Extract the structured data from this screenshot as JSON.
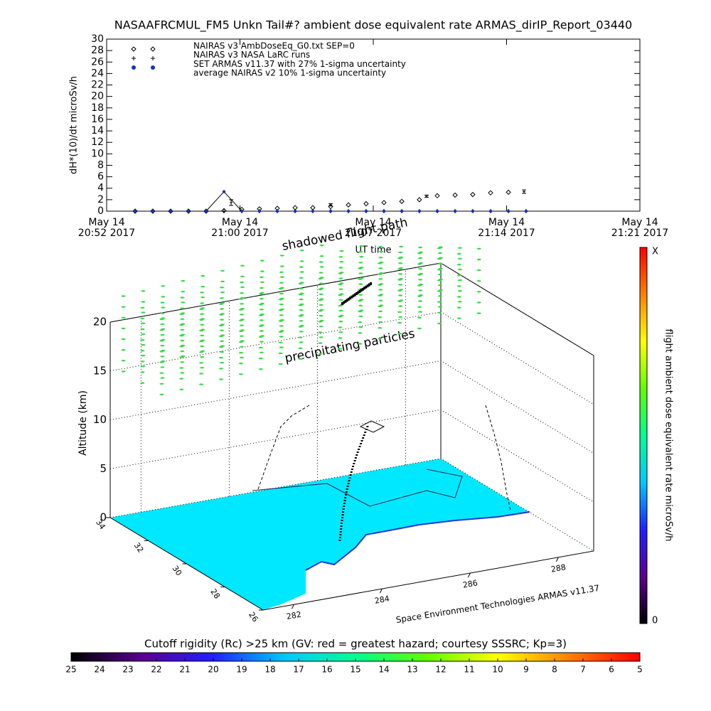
{
  "chart_data": [
    {
      "type": "scatter",
      "title": "NASAAFRCMUL_FM5 Unkn Tail#? ambient dose equivalent rate ARMAS_dirIP_Report_03440",
      "y_label": "dH*(10)/dt microSv/h",
      "x_label": "UT time",
      "xlim": [
        0,
        29
      ],
      "xticks": [
        {
          "value": 0,
          "label": "May 14\n20:52 2017"
        },
        {
          "value": 7.25,
          "label": "May 14\n21:00 2017"
        },
        {
          "value": 14.5,
          "label": "May 14\n21:07 2017"
        },
        {
          "value": 21.75,
          "label": "May 14\n21:14 2017"
        },
        {
          "value": 29,
          "label": "May 14\n21:21 2017"
        }
      ],
      "ylim": [
        0,
        30
      ],
      "yticks": [
        0,
        2,
        4,
        6,
        8,
        10,
        12,
        14,
        16,
        18,
        20,
        22,
        24,
        26,
        28,
        30
      ],
      "x": [
        1.55,
        2.51,
        3.48,
        4.45,
        5.41,
        6.38,
        7.35,
        8.31,
        9.28,
        10.25,
        11.21,
        12.18,
        13.15,
        14.11,
        15.08,
        16.05,
        17.01,
        17.98,
        18.95,
        19.91,
        20.88,
        21.85,
        22.81
      ],
      "series": [
        {
          "name": "NAIRAS v3 AmbDoseEq_G0.txt SEP=0",
          "color": "#000000",
          "marker": "diamond",
          "values": [
            0,
            0,
            0,
            0,
            0,
            0.1,
            0.3,
            0.4,
            0.5,
            0.6,
            0.6,
            0.8,
            1.1,
            1.3,
            1.5,
            1.7,
            2.0,
            2.7,
            2.8,
            2.9,
            3.2,
            3.3,
            null
          ]
        },
        {
          "name": "NAIRAS v3 NASA LaRC runs",
          "color": "#000000",
          "marker": "plus",
          "values": [
            0,
            0,
            0,
            0,
            0,
            0,
            0,
            0,
            0,
            0,
            0,
            0,
            0,
            0,
            0,
            0,
            0,
            0,
            0,
            0,
            0,
            0,
            0
          ]
        },
        {
          "name": "SET ARMAS v11.37 with 27% 1-sigma uncertainty",
          "color": "#1030d0",
          "marker": "dot",
          "values": [
            0,
            0,
            0,
            0,
            0,
            3.4,
            0,
            0,
            0,
            0,
            0,
            0,
            0,
            0,
            0,
            0,
            0,
            0,
            0,
            0,
            0,
            0,
            0
          ]
        },
        {
          "name": "average NAIRAS v2 10% 1-sigma uncertainty",
          "color": "#000000",
          "marker": "errorbar",
          "x": [
            6.77,
            12.18,
            17.4,
            22.7
          ],
          "values": [
            1.5,
            1.1,
            2.6,
            3.4
          ],
          "errors": [
            0.5,
            0.2,
            0.2,
            0.3
          ]
        }
      ]
    },
    {
      "type": "surface3d",
      "z_label": "Altitude (km)",
      "annotations": [
        "shadowed flight path",
        "precipitating particles",
        "Space Environment Technologies ARMAS v11.37"
      ],
      "xlim": [
        281.3,
        288.8
      ],
      "xticks": [
        282,
        284,
        286,
        288
      ],
      "ylim": [
        26,
        34
      ],
      "yticks": [
        26,
        28,
        30,
        32,
        34
      ],
      "zlim": [
        0,
        20
      ],
      "zticks": [
        0,
        5,
        10,
        15,
        20
      ],
      "floor_color": "#00e8ff",
      "particle_color": "#33dd44"
    },
    {
      "type": "colorbar",
      "orientation": "vertical",
      "title": "flight ambient dose equivalent rate microSv/h",
      "top_label": "X",
      "bottom_label": "0",
      "colors": [
        "#000000",
        "#5a0090",
        "#2020ff",
        "#00c8ff",
        "#00ff90",
        "#60ff00",
        "#ffff00",
        "#ff8000",
        "#ff0000"
      ]
    },
    {
      "type": "colorbar",
      "orientation": "horizontal",
      "title": "Cutoff rigidity (Rc) >25 km (GV: red = greatest hazard; courtesy SSSRC; Kp=3)",
      "xlim": [
        25,
        5
      ],
      "xticks": [
        25,
        24,
        23,
        22,
        21,
        20,
        19,
        18,
        17,
        16,
        15,
        14,
        13,
        12,
        11,
        10,
        9,
        8,
        7,
        6,
        5
      ],
      "colors": [
        "#000000",
        "#5a0090",
        "#2020ff",
        "#00c8ff",
        "#00ff90",
        "#60ff00",
        "#ffff00",
        "#ff8000",
        "#ff0000"
      ]
    }
  ]
}
